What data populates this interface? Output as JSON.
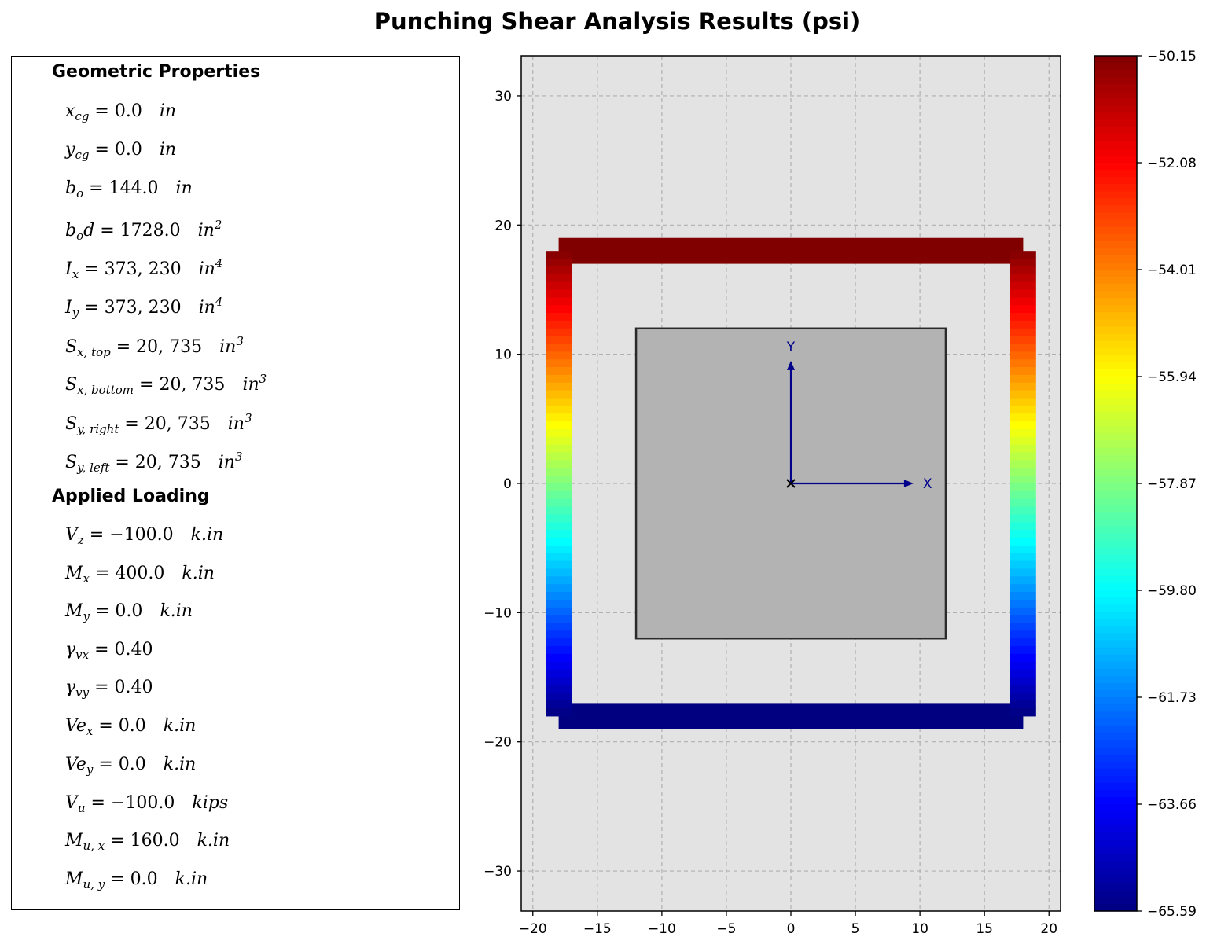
{
  "title": "Punching Shear Analysis Results (psi)",
  "panel": {
    "sections": [
      {
        "heading": "Geometric Properties",
        "items": [
          {
            "sym": "x",
            "sub": "cg",
            "val": " = 0.0",
            "unit": "in",
            "sup": ""
          },
          {
            "sym": "y",
            "sub": "cg",
            "val": " = 0.0",
            "unit": "in",
            "sup": ""
          },
          {
            "sym": "b",
            "sub": "o",
            "val": " = 144.0",
            "unit": "in",
            "sup": ""
          },
          {
            "sym": "b",
            "sub": "o",
            "tail": "d",
            "val": " = 1728.0",
            "unit": "in",
            "sup": "2"
          },
          {
            "sym": "I",
            "sub": "x",
            "val": " = 373, 230",
            "unit": "in",
            "sup": "4"
          },
          {
            "sym": "I",
            "sub": "y",
            "val": " = 373, 230",
            "unit": "in",
            "sup": "4"
          },
          {
            "sym": "S",
            "sub": "x, top",
            "val": " = 20, 735",
            "unit": "in",
            "sup": "3"
          },
          {
            "sym": "S",
            "sub": "x, bottom",
            "val": " = 20, 735",
            "unit": "in",
            "sup": "3"
          },
          {
            "sym": "S",
            "sub": "y, right",
            "val": " = 20, 735",
            "unit": "in",
            "sup": "3"
          },
          {
            "sym": "S",
            "sub": "y, left",
            "val": " = 20, 735",
            "unit": "in",
            "sup": "3"
          }
        ]
      },
      {
        "heading": "Applied Loading",
        "items": [
          {
            "sym": "V",
            "sub": "z",
            "val": " = −100.0",
            "unit": "k.in",
            "sup": ""
          },
          {
            "sym": "M",
            "sub": "x",
            "val": " = 400.0",
            "unit": "k.in",
            "sup": ""
          },
          {
            "sym": "M",
            "sub": "y",
            "val": " = 0.0",
            "unit": "k.in",
            "sup": ""
          },
          {
            "sym": "γ",
            "sub": "vx",
            "val": " = 0.40",
            "unit": "",
            "sup": ""
          },
          {
            "sym": "γ",
            "sub": "vy",
            "val": " = 0.40",
            "unit": "",
            "sup": ""
          },
          {
            "sym": "Ve",
            "sub": "x",
            "val": " = 0.0",
            "unit": "k.in",
            "sup": ""
          },
          {
            "sym": "Ve",
            "sub": "y",
            "val": " = 0.0",
            "unit": "k.in",
            "sup": ""
          },
          {
            "sym": "V",
            "sub": "u",
            "val": " = −100.0",
            "unit": "kips",
            "sup": ""
          },
          {
            "sym": "M",
            "sub": "u, x",
            "val": " = 160.0",
            "unit": "k.in",
            "sup": ""
          },
          {
            "sym": "M",
            "sub": "u, y",
            "val": " = 0.0",
            "unit": "k.in",
            "sup": ""
          }
        ]
      }
    ]
  },
  "chart_data": {
    "type": "heatmap",
    "xlim": [
      -20.9,
      20.9
    ],
    "ylim": [
      -33.1,
      33.1
    ],
    "xticks": [
      -20,
      -15,
      -10,
      -5,
      0,
      5,
      10,
      15,
      20
    ],
    "yticks": [
      -30,
      -20,
      -10,
      0,
      10,
      20,
      30
    ],
    "grid": true,
    "background": "#e3e3e3",
    "column": {
      "x": [
        -12,
        12
      ],
      "y": [
        -12,
        12
      ],
      "fill": "#b3b3b3",
      "edge": "#2a2a2a"
    },
    "perimeter": {
      "segments": [
        {
          "side": "top",
          "x": [
            -18,
            18
          ],
          "y": [
            17.0,
            19.0
          ],
          "stress": -50.15
        },
        {
          "side": "bottom",
          "x": [
            -18,
            18
          ],
          "y": [
            -19.0,
            -17.0
          ],
          "stress": -65.59
        },
        {
          "side": "left",
          "x": [
            -19.0,
            -17.0
          ],
          "y": [
            -18,
            18
          ],
          "stress_top": -50.15,
          "stress_bottom": -65.59
        },
        {
          "side": "right",
          "x": [
            17.0,
            19.0
          ],
          "y": [
            -18,
            18
          ],
          "stress_top": -50.15,
          "stress_bottom": -65.59
        }
      ]
    },
    "axes_arrows": {
      "origin": [
        0,
        0
      ],
      "x_end": [
        9.5,
        0
      ],
      "y_end": [
        0,
        9.5
      ],
      "x_label": "X",
      "y_label": "Y",
      "color": "#00008b"
    },
    "colorbar": {
      "min": -65.59,
      "max": -50.15,
      "ticks": [
        "−50.15",
        "−52.08",
        "−54.01",
        "−55.94",
        "−57.87",
        "−59.80",
        "−61.73",
        "−63.66",
        "−65.59"
      ],
      "colormap": "jet"
    }
  }
}
